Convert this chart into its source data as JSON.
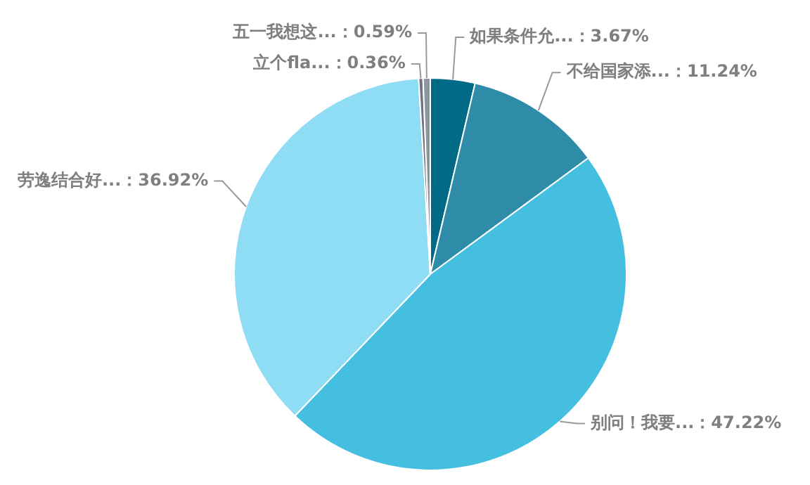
{
  "chart_data": {
    "type": "pie",
    "categories": [
      "如果条件允...",
      "不给国家添...",
      "别问！我要...",
      "劳逸结合好...",
      "立个fla...",
      "五一我想这..."
    ],
    "values": [
      3.67,
      11.24,
      47.22,
      36.92,
      0.36,
      0.59
    ],
    "colors": [
      "#006a87",
      "#2e8ca9",
      "#45bfe0",
      "#8fdcf5",
      "#6f7480",
      "#8d95a5"
    ],
    "value_labels": [
      "：3.67%",
      "：11.24%",
      "：47.22%",
      "：36.92%",
      "：0.36%",
      "：0.59%"
    ],
    "legend": false
  }
}
